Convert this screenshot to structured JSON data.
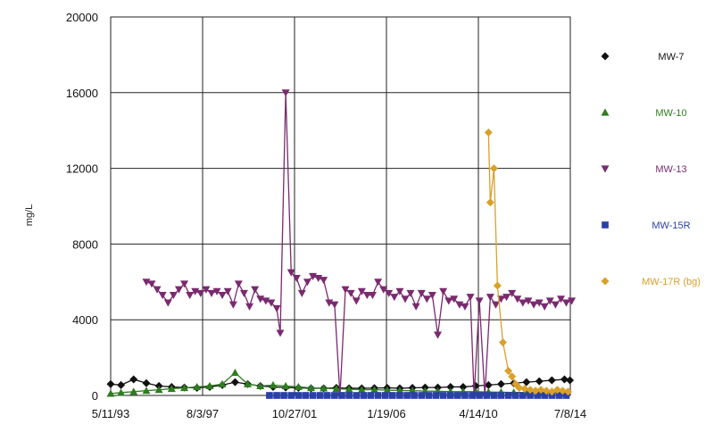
{
  "chart_data": {
    "type": "scatter",
    "title": "",
    "xlabel": "",
    "ylabel": "mg/L",
    "xlim": [
      "1993-05-11",
      "2014-07-08"
    ],
    "ylim": [
      0,
      20000
    ],
    "x_tick_labels": [
      "5/11/93",
      "8/3/97",
      "10/27/01",
      "1/19/06",
      "4/14/10",
      "7/8/14"
    ],
    "y_tick_labels": [
      "0",
      "4000",
      "8000",
      "12000",
      "16000",
      "20000"
    ],
    "grid": true,
    "legend_position": "right",
    "series": [
      {
        "name": "MW-7",
        "marker": "diamond",
        "color": "#111111",
        "points": [
          [
            "1993-05-11",
            600
          ],
          [
            "1993-11-01",
            550
          ],
          [
            "1994-06-01",
            850
          ],
          [
            "1995-01-01",
            650
          ],
          [
            "1995-08-01",
            500
          ],
          [
            "1996-03-01",
            450
          ],
          [
            "1996-10-01",
            420
          ],
          [
            "1997-05-01",
            400
          ],
          [
            "1997-12-01",
            450
          ],
          [
            "1998-07-01",
            550
          ],
          [
            "1999-02-01",
            700
          ],
          [
            "1999-09-01",
            600
          ],
          [
            "2000-04-01",
            500
          ],
          [
            "2000-11-01",
            450
          ],
          [
            "2001-06-01",
            420
          ],
          [
            "2002-01-01",
            400
          ],
          [
            "2002-08-01",
            380
          ],
          [
            "2003-03-01",
            380
          ],
          [
            "2003-10-01",
            400
          ],
          [
            "2004-05-01",
            380
          ],
          [
            "2004-12-01",
            380
          ],
          [
            "2005-07-01",
            390
          ],
          [
            "2006-02-01",
            400
          ],
          [
            "2006-09-01",
            380
          ],
          [
            "2007-04-01",
            400
          ],
          [
            "2007-11-01",
            420
          ],
          [
            "2008-06-01",
            420
          ],
          [
            "2009-01-01",
            450
          ],
          [
            "2009-08-01",
            450
          ],
          [
            "2010-03-01",
            500
          ],
          [
            "2010-10-01",
            550
          ],
          [
            "2011-05-01",
            600
          ],
          [
            "2011-12-01",
            650
          ],
          [
            "2012-07-01",
            700
          ],
          [
            "2013-02-01",
            750
          ],
          [
            "2013-09-01",
            800
          ],
          [
            "2014-04-01",
            850
          ],
          [
            "2014-07-01",
            800
          ]
        ]
      },
      {
        "name": "MW-10",
        "marker": "triangle-up",
        "color": "#2e7d1f",
        "points": [
          [
            "1993-05-11",
            100
          ],
          [
            "1993-11-01",
            150
          ],
          [
            "1994-06-01",
            200
          ],
          [
            "1995-01-01",
            250
          ],
          [
            "1995-08-01",
            300
          ],
          [
            "1996-03-01",
            350
          ],
          [
            "1996-10-01",
            400
          ],
          [
            "1997-05-01",
            450
          ],
          [
            "1997-12-01",
            500
          ],
          [
            "1998-07-01",
            600
          ],
          [
            "1999-02-01",
            1200
          ],
          [
            "1999-09-01",
            600
          ],
          [
            "2000-04-01",
            500
          ],
          [
            "2000-11-01",
            550
          ],
          [
            "2001-06-01",
            500
          ],
          [
            "2002-01-01",
            450
          ],
          [
            "2002-08-01",
            400
          ],
          [
            "2003-03-01",
            380
          ],
          [
            "2003-10-01",
            350
          ],
          [
            "2004-05-01",
            330
          ],
          [
            "2004-12-01",
            300
          ],
          [
            "2005-07-01",
            300
          ],
          [
            "2006-02-01",
            280
          ],
          [
            "2006-09-01",
            260
          ],
          [
            "2007-04-01",
            250
          ],
          [
            "2007-11-01",
            230
          ],
          [
            "2008-06-01",
            220
          ],
          [
            "2009-01-01",
            200
          ],
          [
            "2009-08-01",
            200
          ],
          [
            "2010-03-01",
            200
          ],
          [
            "2010-10-01",
            180
          ],
          [
            "2011-05-01",
            170
          ],
          [
            "2011-12-01",
            160
          ],
          [
            "2012-07-01",
            150
          ],
          [
            "2013-02-01",
            150
          ],
          [
            "2013-09-01",
            140
          ],
          [
            "2014-04-01",
            130
          ]
        ]
      },
      {
        "name": "MW-13",
        "marker": "triangle-down",
        "color": "#7a2a6f",
        "points": [
          [
            "1995-01-01",
            6000
          ],
          [
            "1995-04-01",
            5900
          ],
          [
            "1995-07-01",
            5600
          ],
          [
            "1995-10-01",
            5300
          ],
          [
            "1996-01-01",
            4900
          ],
          [
            "1996-04-01",
            5300
          ],
          [
            "1996-07-01",
            5600
          ],
          [
            "1996-10-01",
            5900
          ],
          [
            "1997-01-01",
            5300
          ],
          [
            "1997-04-01",
            5500
          ],
          [
            "1997-07-01",
            5400
          ],
          [
            "1997-10-01",
            5600
          ],
          [
            "1998-01-01",
            5400
          ],
          [
            "1998-04-01",
            5500
          ],
          [
            "1998-07-01",
            5300
          ],
          [
            "1998-10-01",
            5500
          ],
          [
            "1999-01-01",
            4800
          ],
          [
            "1999-04-01",
            5900
          ],
          [
            "1999-07-01",
            5400
          ],
          [
            "1999-10-01",
            4700
          ],
          [
            "2000-01-01",
            5600
          ],
          [
            "2000-04-01",
            5100
          ],
          [
            "2000-07-01",
            5000
          ],
          [
            "2000-10-01",
            4900
          ],
          [
            "2001-01-01",
            4600
          ],
          [
            "2001-03-01",
            3300
          ],
          [
            "2001-06-01",
            16000
          ],
          [
            "2001-09-01",
            6500
          ],
          [
            "2001-12-01",
            6200
          ],
          [
            "2002-03-01",
            5400
          ],
          [
            "2002-06-01",
            6000
          ],
          [
            "2002-09-01",
            6300
          ],
          [
            "2002-12-01",
            6200
          ],
          [
            "2003-03-01",
            6100
          ],
          [
            "2003-06-01",
            4900
          ],
          [
            "2003-09-01",
            4800
          ],
          [
            "2003-12-01",
            0
          ],
          [
            "2004-03-01",
            5600
          ],
          [
            "2004-06-01",
            5400
          ],
          [
            "2004-09-01",
            5000
          ],
          [
            "2004-12-01",
            5500
          ],
          [
            "2005-03-01",
            5300
          ],
          [
            "2005-06-01",
            5300
          ],
          [
            "2005-09-01",
            6000
          ],
          [
            "2005-12-01",
            5600
          ],
          [
            "2006-03-01",
            5400
          ],
          [
            "2006-06-01",
            5200
          ],
          [
            "2006-09-01",
            5500
          ],
          [
            "2006-12-01",
            5100
          ],
          [
            "2007-03-01",
            5400
          ],
          [
            "2007-06-01",
            4700
          ],
          [
            "2007-09-01",
            5400
          ],
          [
            "2007-12-01",
            5100
          ],
          [
            "2008-03-01",
            5300
          ],
          [
            "2008-06-01",
            3200
          ],
          [
            "2008-09-01",
            5500
          ],
          [
            "2008-12-01",
            5000
          ],
          [
            "2009-03-01",
            5100
          ],
          [
            "2009-06-01",
            4800
          ],
          [
            "2009-09-01",
            4700
          ],
          [
            "2009-12-01",
            5200
          ],
          [
            "2010-02-01",
            0
          ],
          [
            "2010-05-01",
            5000
          ],
          [
            "2010-08-01",
            0
          ],
          [
            "2010-11-01",
            5200
          ],
          [
            "2011-02-01",
            4800
          ],
          [
            "2011-05-01",
            5100
          ],
          [
            "2011-08-01",
            5200
          ],
          [
            "2011-11-01",
            5400
          ],
          [
            "2012-02-01",
            5100
          ],
          [
            "2012-05-01",
            4900
          ],
          [
            "2012-08-01",
            5000
          ],
          [
            "2012-11-01",
            4800
          ],
          [
            "2013-02-01",
            4900
          ],
          [
            "2013-05-01",
            4700
          ],
          [
            "2013-08-01",
            5000
          ],
          [
            "2013-11-01",
            4800
          ],
          [
            "2014-02-01",
            5100
          ],
          [
            "2014-05-01",
            4900
          ],
          [
            "2014-08-01",
            5000
          ]
        ]
      },
      {
        "name": "MW-15R",
        "marker": "square",
        "color": "#2a3fa8",
        "points": [
          [
            "2000-09-01",
            0
          ],
          [
            "2001-01-01",
            0
          ],
          [
            "2001-05-01",
            0
          ],
          [
            "2001-09-01",
            0
          ],
          [
            "2002-01-01",
            0
          ],
          [
            "2002-05-01",
            0
          ],
          [
            "2002-09-01",
            0
          ],
          [
            "2003-01-01",
            0
          ],
          [
            "2003-05-01",
            0
          ],
          [
            "2003-09-01",
            0
          ],
          [
            "2004-01-01",
            0
          ],
          [
            "2004-05-01",
            0
          ],
          [
            "2004-09-01",
            0
          ],
          [
            "2005-01-01",
            0
          ],
          [
            "2005-05-01",
            0
          ],
          [
            "2005-09-01",
            0
          ],
          [
            "2006-01-01",
            0
          ],
          [
            "2006-05-01",
            0
          ],
          [
            "2006-09-01",
            0
          ],
          [
            "2007-01-01",
            0
          ],
          [
            "2007-05-01",
            0
          ],
          [
            "2007-09-01",
            0
          ],
          [
            "2008-01-01",
            0
          ],
          [
            "2008-05-01",
            0
          ],
          [
            "2008-09-01",
            0
          ],
          [
            "2009-01-01",
            0
          ],
          [
            "2009-05-01",
            0
          ],
          [
            "2009-09-01",
            0
          ],
          [
            "2010-01-01",
            0
          ],
          [
            "2010-05-01",
            0
          ],
          [
            "2010-09-01",
            0
          ],
          [
            "2011-01-01",
            0
          ],
          [
            "2011-05-01",
            0
          ],
          [
            "2011-09-01",
            0
          ],
          [
            "2012-01-01",
            0
          ],
          [
            "2012-05-01",
            0
          ],
          [
            "2012-09-01",
            0
          ],
          [
            "2013-01-01",
            0
          ],
          [
            "2013-05-01",
            0
          ],
          [
            "2013-09-01",
            0
          ],
          [
            "2014-01-01",
            0
          ],
          [
            "2014-05-01",
            0
          ]
        ]
      },
      {
        "name": "MW-17R (bg)",
        "marker": "diamond",
        "color": "#d9a02a",
        "points": [
          [
            "2010-10-01",
            13900
          ],
          [
            "2010-11-01",
            10200
          ],
          [
            "2011-01-01",
            12000
          ],
          [
            "2011-03-01",
            5800
          ],
          [
            "2011-06-01",
            2800
          ],
          [
            "2011-09-01",
            1300
          ],
          [
            "2011-11-01",
            1000
          ],
          [
            "2012-01-01",
            600
          ],
          [
            "2012-03-01",
            400
          ],
          [
            "2012-06-01",
            350
          ],
          [
            "2012-09-01",
            300
          ],
          [
            "2012-12-01",
            250
          ],
          [
            "2013-03-01",
            300
          ],
          [
            "2013-06-01",
            250
          ],
          [
            "2013-09-01",
            200
          ],
          [
            "2013-12-01",
            300
          ],
          [
            "2014-03-01",
            250
          ],
          [
            "2014-06-01",
            200
          ]
        ]
      }
    ]
  }
}
